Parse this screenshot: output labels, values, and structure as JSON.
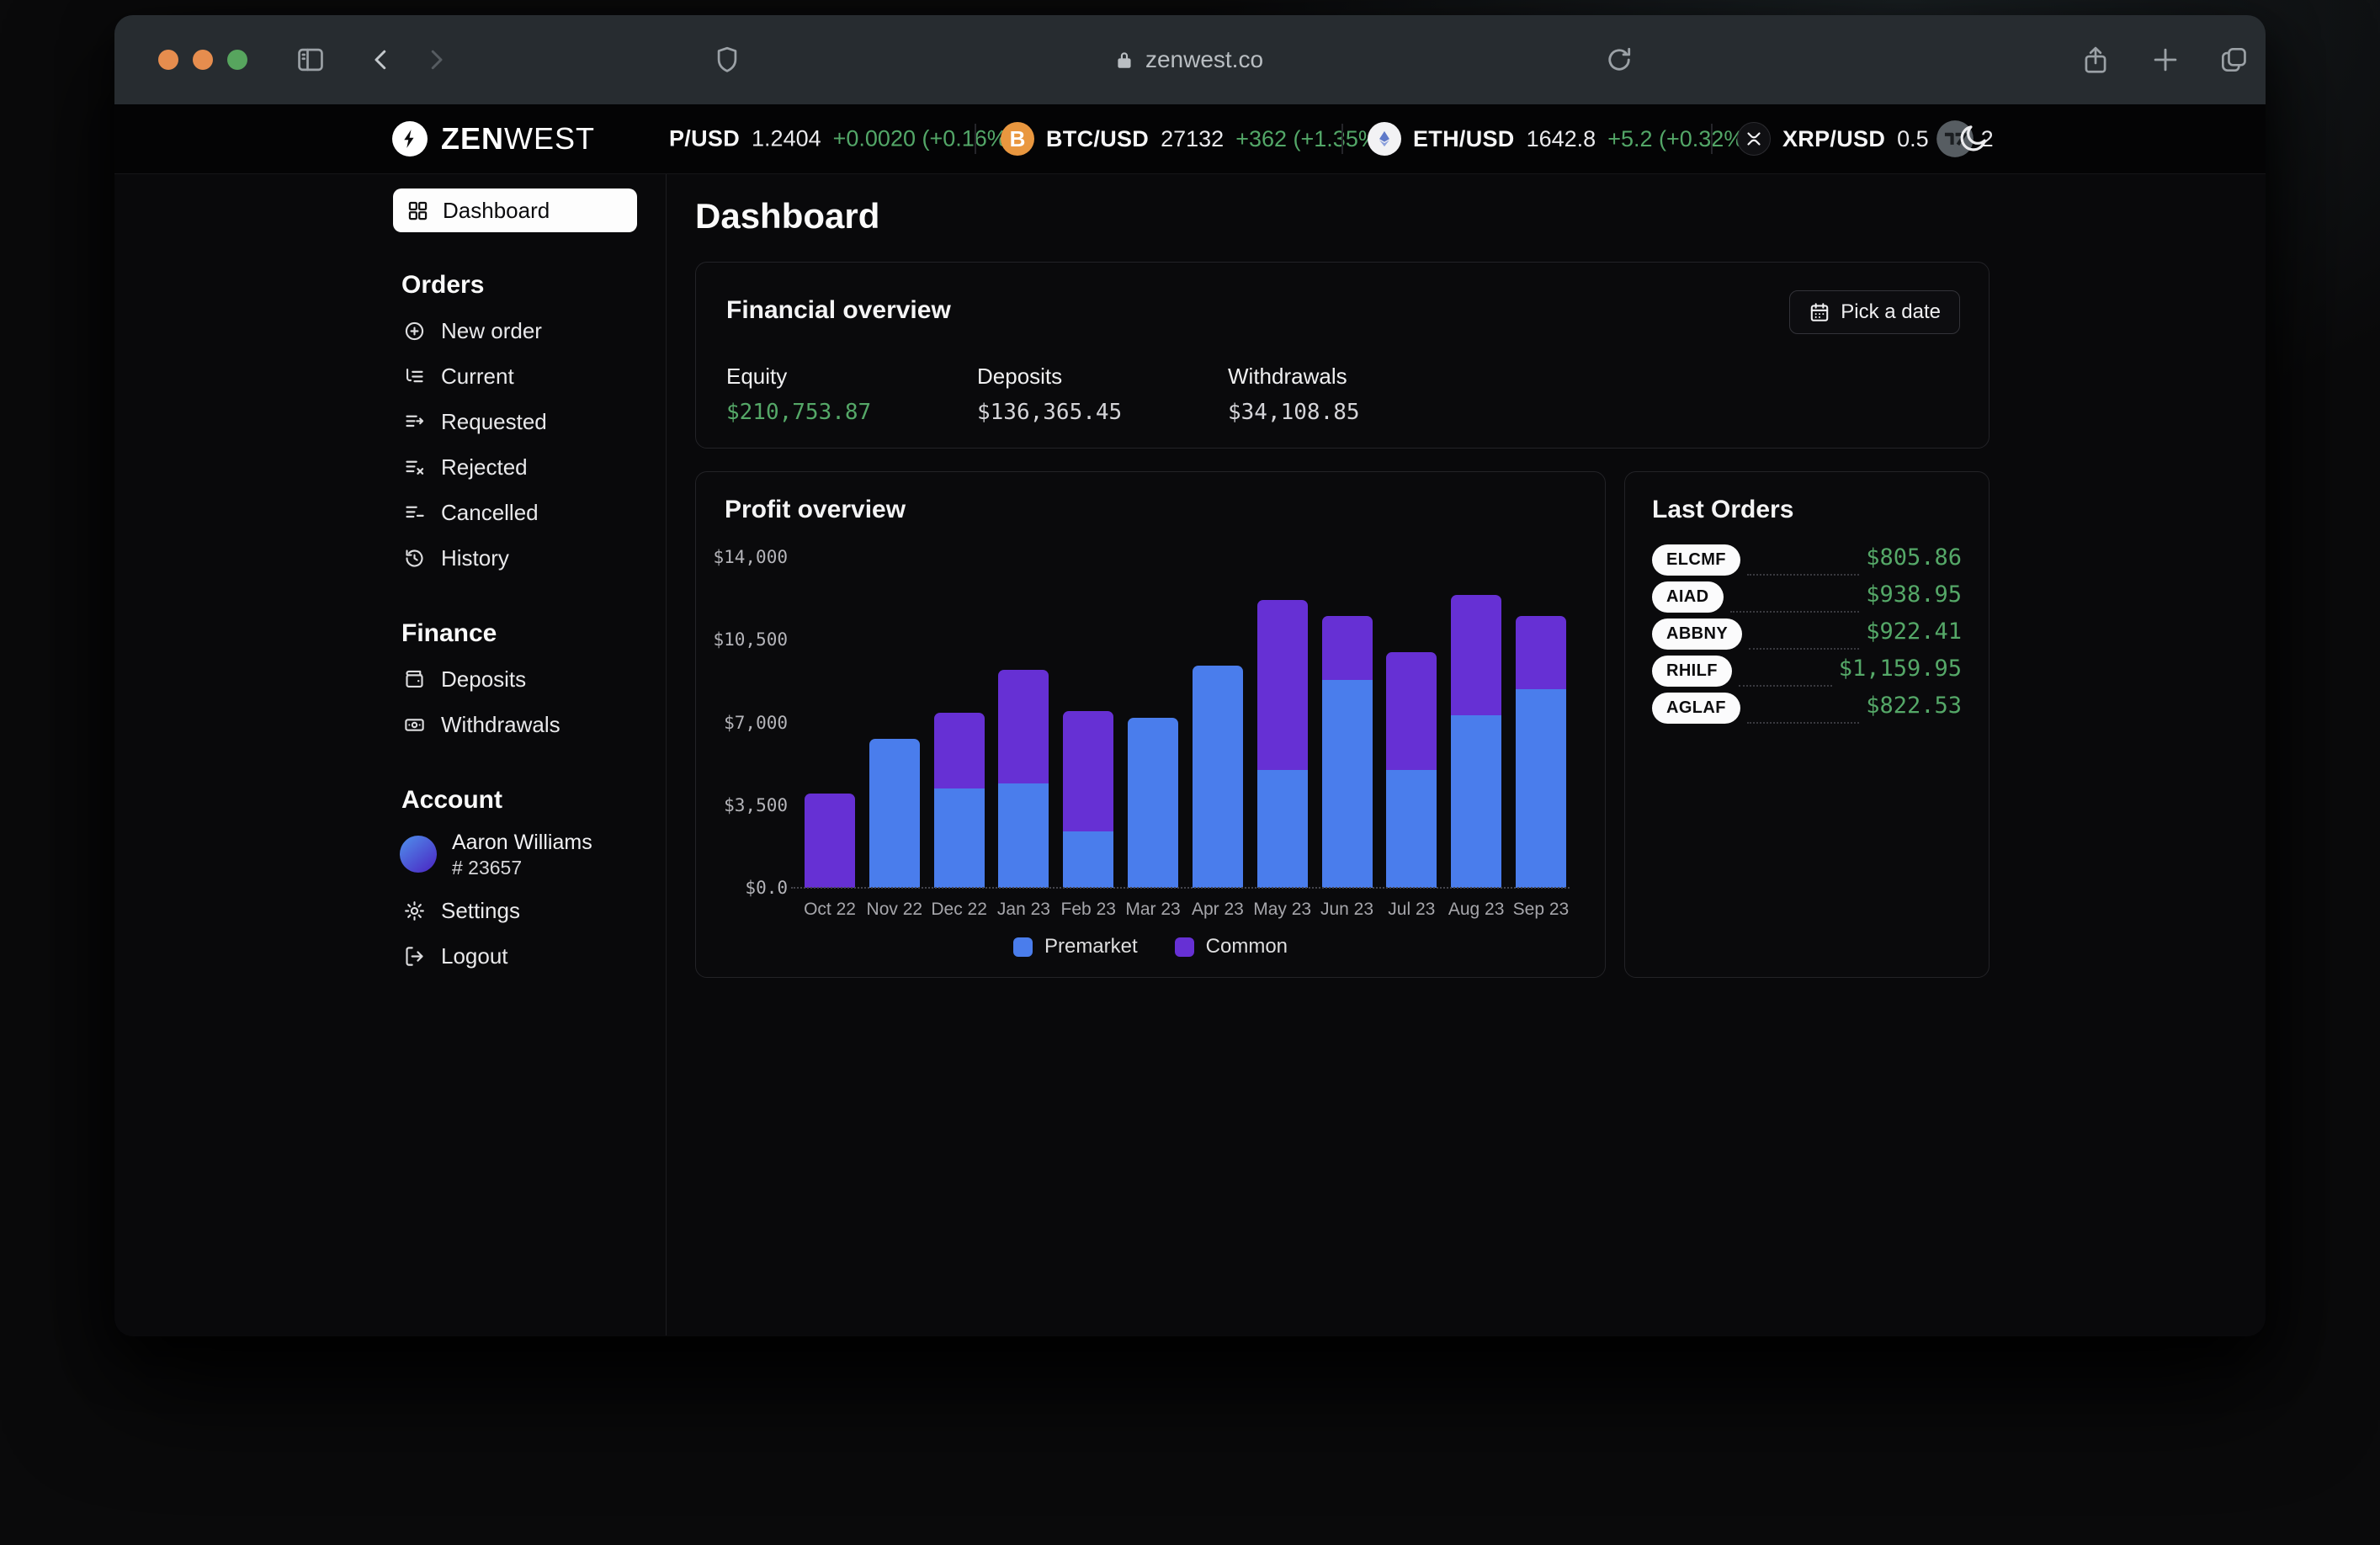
{
  "browser": {
    "url": "zenwest.co"
  },
  "brand": {
    "bold": "ZEN",
    "light": "WEST"
  },
  "ticker": {
    "pairs": [
      {
        "symbol": "P/USD",
        "value": "1.2404",
        "change": "+0.0020 (+0.16%)",
        "icon": "none"
      },
      {
        "symbol": "BTC/USD",
        "value": "27132",
        "change": "+362 (+1.35%)",
        "icon": "bitcoin"
      },
      {
        "symbol": "ETH/USD",
        "value": "1642.8",
        "change": "+5.2 (+0.32%)",
        "icon": "ethereum"
      },
      {
        "symbol": "XRP/USD",
        "value_prefix": "0.5",
        "value_suffix": "2",
        "icon": "xrp"
      }
    ]
  },
  "sidebar": {
    "dashboard": "Dashboard",
    "orders": {
      "title": "Orders",
      "items": [
        "New order",
        "Current",
        "Requested",
        "Rejected",
        "Cancelled",
        "History"
      ]
    },
    "finance": {
      "title": "Finance",
      "items": [
        "Deposits",
        "Withdrawals"
      ]
    },
    "account": {
      "title": "Account",
      "user_name": "Aaron Williams",
      "user_id": "# 23657",
      "settings": "Settings",
      "logout": "Logout"
    }
  },
  "main": {
    "page_title": "Dashboard",
    "financial_overview": {
      "title": "Financial overview",
      "date_button": "Pick a date",
      "stats": [
        {
          "label": "Equity",
          "value": "$210,753.87",
          "positive": true
        },
        {
          "label": "Deposits",
          "value": "$136,365.45",
          "positive": false
        },
        {
          "label": "Withdrawals",
          "value": "$34,108.85",
          "positive": false
        }
      ]
    },
    "last_orders": {
      "title": "Last Orders",
      "rows": [
        {
          "ticker": "ELCMF",
          "price": "$805.86"
        },
        {
          "ticker": "AIAD",
          "price": "$938.95"
        },
        {
          "ticker": "ABBNY",
          "price": "$922.41"
        },
        {
          "ticker": "RHILF",
          "price": "$1,159.95"
        },
        {
          "ticker": "AGLAF",
          "price": "$822.53"
        }
      ]
    }
  },
  "chart_data": {
    "type": "bar",
    "stacked": true,
    "title": "Profit overview",
    "categories": [
      "Oct 22",
      "Nov 22",
      "Dec 22",
      "Jan 23",
      "Feb 23",
      "Mar 23",
      "Apr 23",
      "May 23",
      "Jun 23",
      "Jul 23",
      "Aug 23",
      "Sep 23"
    ],
    "series": [
      {
        "name": "Premarket",
        "color": "#4a7dec",
        "values": [
          0,
          6300,
          4200,
          4400,
          2400,
          7200,
          9400,
          5000,
          8800,
          5000,
          7300,
          8400
        ]
      },
      {
        "name": "Common",
        "color": "#6630d4",
        "values": [
          4000,
          0,
          3200,
          4800,
          5100,
          0,
          0,
          7200,
          2700,
          5000,
          5100,
          3100
        ]
      }
    ],
    "y_ticks": [
      {
        "value": 0,
        "label": "$0.0"
      },
      {
        "value": 3500,
        "label": "$3,500"
      },
      {
        "value": 7000,
        "label": "$7,000"
      },
      {
        "value": 10500,
        "label": "$10,500"
      },
      {
        "value": 14000,
        "label": "$14,000"
      }
    ],
    "ylim": [
      0,
      14000
    ],
    "grid": false,
    "legend_position": "bottom"
  },
  "colors": {
    "positive": "#55a868",
    "premarket": "#4a7dec",
    "common": "#6630d4",
    "traffic": [
      "#e68d4e",
      "#e68d4e",
      "#57a55e"
    ]
  }
}
